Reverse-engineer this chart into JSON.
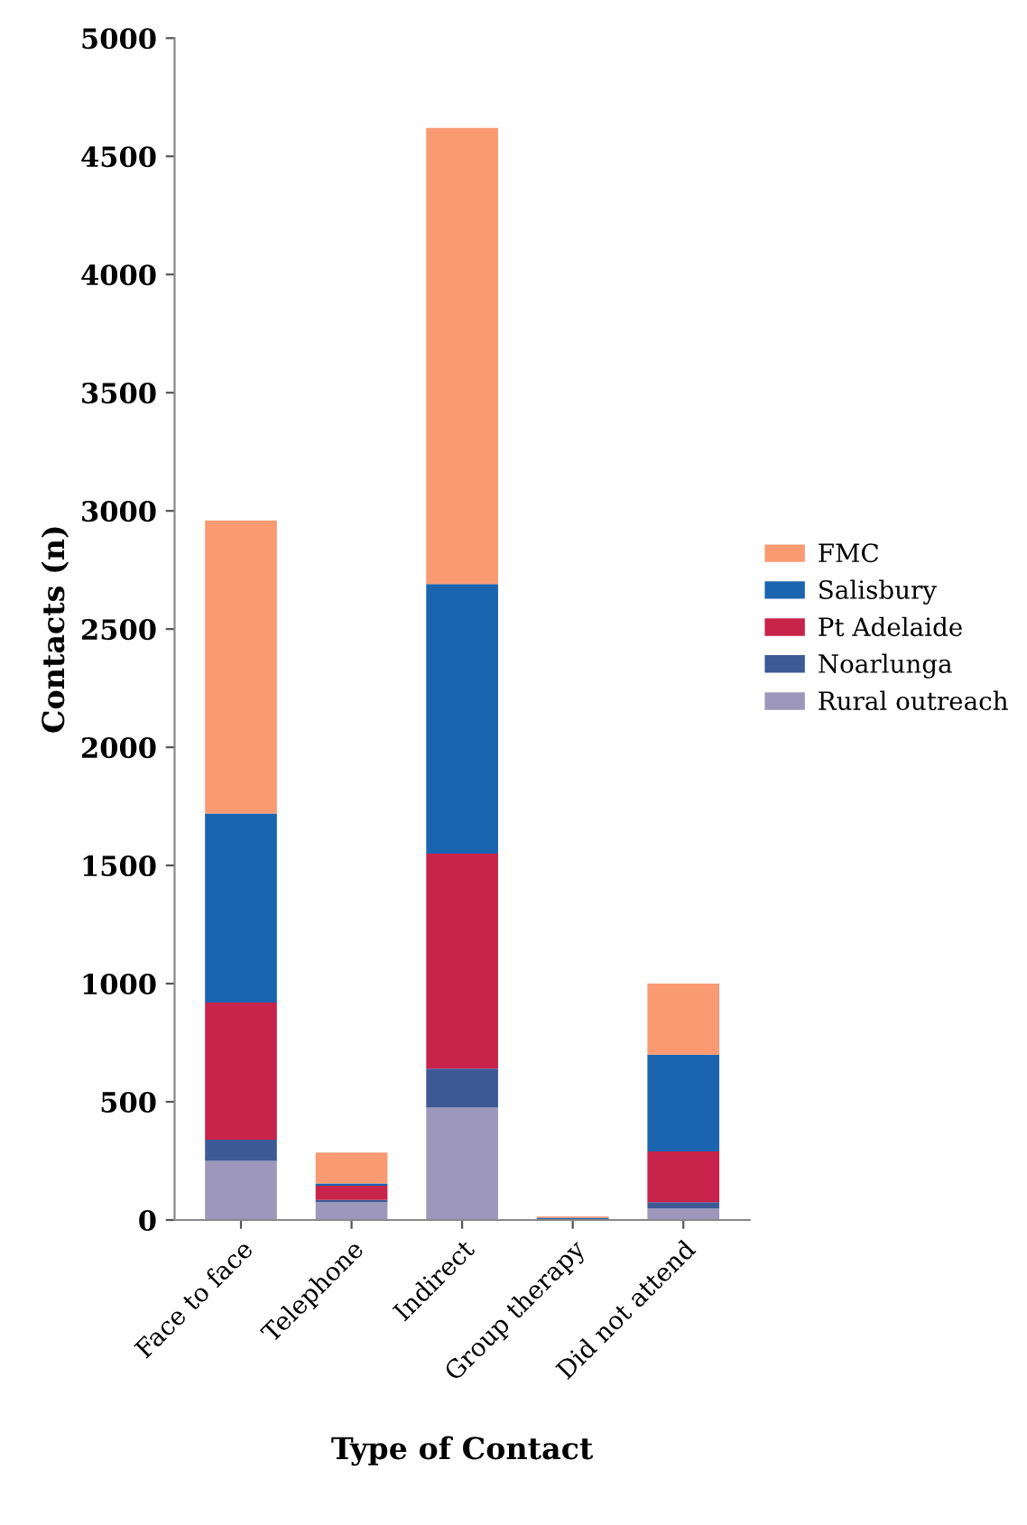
{
  "chart_data": {
    "type": "bar",
    "stacked": true,
    "xlabel": "Type of Contact",
    "ylabel": "Contacts (n)",
    "categories": [
      "Face to face",
      "Telephone",
      "Indirect",
      "Group therapy",
      "Did not attend"
    ],
    "series": [
      {
        "name": "Rural outreach",
        "color": "#9c97bb",
        "values": [
          250,
          75,
          475,
          null,
          50
        ]
      },
      {
        "name": "Noarlunga",
        "color": "#3d5a96",
        "values": [
          90,
          10,
          165,
          null,
          25
        ]
      },
      {
        "name": "Pt Adelaide",
        "color": "#c8234a",
        "values": [
          580,
          60,
          910,
          null,
          215
        ]
      },
      {
        "name": "Salisbury",
        "color": "#1b64b0",
        "values": [
          800,
          10,
          1140,
          10,
          410
        ]
      },
      {
        "name": "FMC",
        "color": "#f99a72",
        "values": [
          1240,
          130,
          1930,
          5,
          300
        ]
      }
    ],
    "ylim": [
      0,
      5000
    ],
    "yticks": [
      0,
      500,
      1000,
      1500,
      2000,
      2500,
      3000,
      3500,
      4000,
      4500,
      5000
    ],
    "grid": false,
    "legend": "right"
  }
}
